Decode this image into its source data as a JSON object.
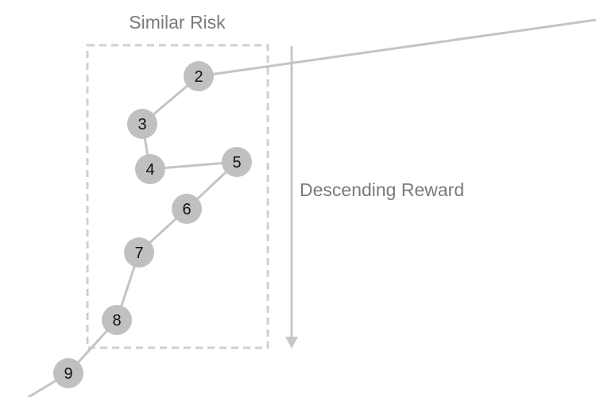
{
  "labels": {
    "group": "Similar Risk",
    "arrow": "Descending Reward"
  },
  "nodes": [
    "2",
    "3",
    "4",
    "5",
    "6",
    "7",
    "8",
    "9"
  ],
  "colors": {
    "node_fill": "#c0c0c0",
    "line": "#c4c4c4",
    "label": "#7a7a7a",
    "node_text": "#111111",
    "box_border": "#d0d0d0"
  }
}
